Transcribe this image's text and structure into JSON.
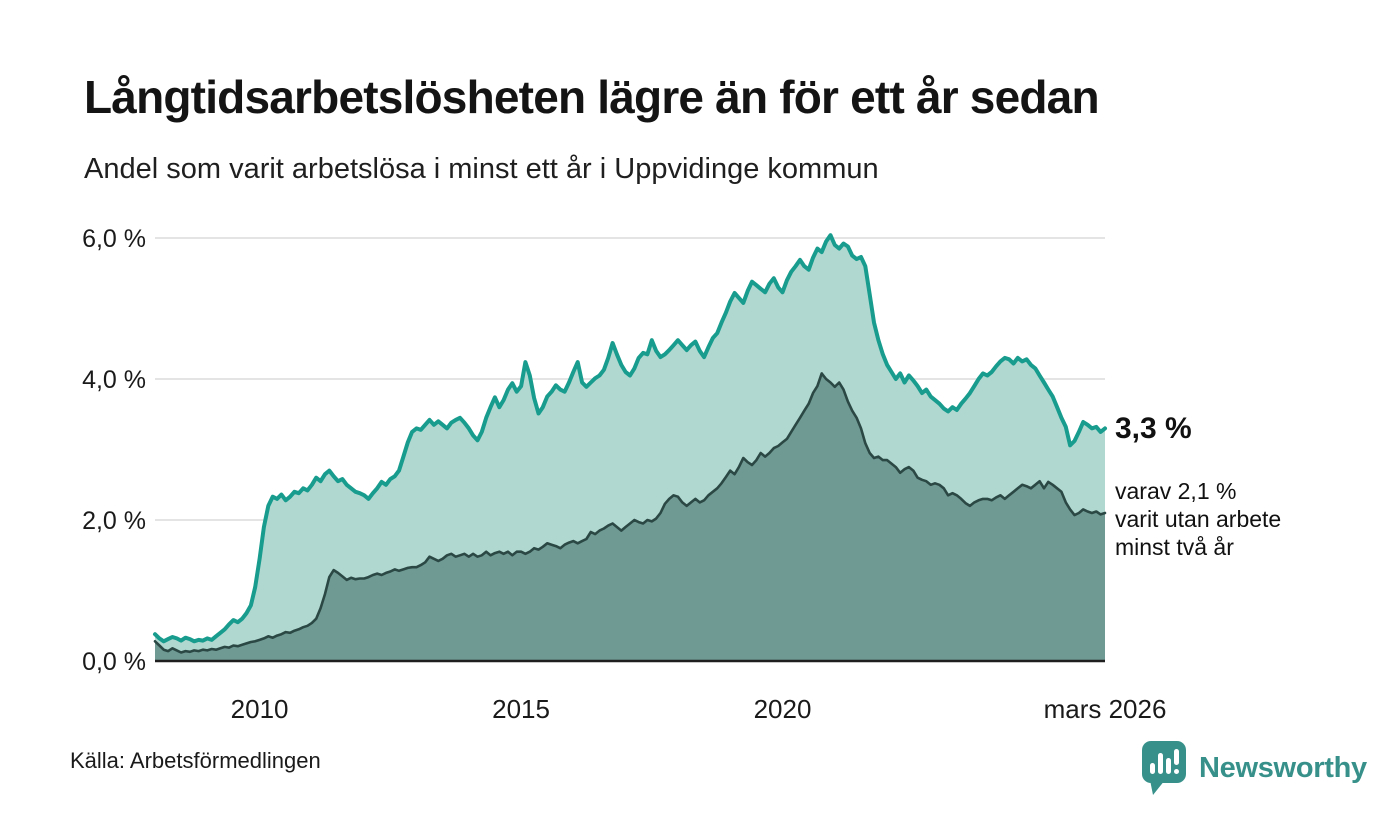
{
  "header": {
    "title": "Långtidsarbetslösheten lägre än för ett år sedan",
    "subtitle": "Andel som varit arbetslösa i minst ett år i Uppvidinge kommun"
  },
  "annotations": {
    "latest_value": "3,3 %",
    "secondary": "varav 2,1 %\nvarit utan arbete\nminst två år"
  },
  "footer": {
    "source": "Källa: Arbetsförmedlingen",
    "brand": "Newsworthy"
  },
  "colors": {
    "line_1yr": "#189c8d",
    "fill_1yr": "#b0d8d1",
    "line_2yr": "#2b4845",
    "fill_2yr": "#6f9a93",
    "gridline": "#dcdcdc",
    "axis": "#1f1f1f",
    "brand_teal": "#37918a"
  },
  "chart_data": {
    "type": "area",
    "title": "Långtidsarbetslösheten lägre än för ett år sedan",
    "subtitle": "Andel som varit arbetslösa i minst ett år i Uppvidinge kommun",
    "x_unit": "monthly, 2008-01 to 2026-03 (fractional years)",
    "x_start": 2008.0,
    "x_end": 2026.1667,
    "ylim": [
      0,
      6.3
    ],
    "grid": "horizontal only",
    "legend_position": "none (labelled by right-side annotations)",
    "yticks": [
      {
        "value": 0,
        "label": "0,0 %"
      },
      {
        "value": 2,
        "label": "2,0 %"
      },
      {
        "value": 4,
        "label": "4,0 %"
      },
      {
        "value": 6,
        "label": "6,0 %"
      }
    ],
    "xticks": [
      {
        "value": 2010,
        "label": "2010"
      },
      {
        "value": 2015,
        "label": "2015"
      },
      {
        "value": 2020,
        "label": "2020"
      },
      {
        "value": 2026.1667,
        "label": "mars 2026"
      }
    ],
    "series": [
      {
        "name": "Andel arbetslösa minst ett år",
        "latest_label": "3,3 %",
        "values": [
          0.38,
          0.32,
          0.28,
          0.31,
          0.34,
          0.32,
          0.29,
          0.33,
          0.31,
          0.28,
          0.3,
          0.29,
          0.32,
          0.3,
          0.35,
          0.4,
          0.45,
          0.52,
          0.58,
          0.55,
          0.6,
          0.68,
          0.79,
          1.05,
          1.45,
          1.9,
          2.2,
          2.33,
          2.3,
          2.36,
          2.28,
          2.33,
          2.4,
          2.38,
          2.45,
          2.42,
          2.5,
          2.6,
          2.55,
          2.65,
          2.7,
          2.62,
          2.55,
          2.58,
          2.5,
          2.45,
          2.4,
          2.38,
          2.35,
          2.3,
          2.38,
          2.45,
          2.54,
          2.5,
          2.58,
          2.62,
          2.7,
          2.9,
          3.1,
          3.25,
          3.3,
          3.28,
          3.35,
          3.42,
          3.35,
          3.4,
          3.35,
          3.3,
          3.38,
          3.42,
          3.45,
          3.38,
          3.3,
          3.2,
          3.13,
          3.25,
          3.45,
          3.6,
          3.74,
          3.6,
          3.7,
          3.85,
          3.94,
          3.82,
          3.9,
          4.24,
          4.05,
          3.73,
          3.51,
          3.6,
          3.75,
          3.82,
          3.91,
          3.85,
          3.82,
          3.95,
          4.1,
          4.24,
          3.95,
          3.89,
          3.95,
          4.01,
          4.05,
          4.13,
          4.3,
          4.51,
          4.35,
          4.2,
          4.1,
          4.05,
          4.15,
          4.3,
          4.37,
          4.35,
          4.55,
          4.4,
          4.31,
          4.35,
          4.41,
          4.48,
          4.55,
          4.48,
          4.41,
          4.48,
          4.53,
          4.4,
          4.31,
          4.45,
          4.58,
          4.65,
          4.8,
          4.94,
          5.1,
          5.22,
          5.15,
          5.08,
          5.25,
          5.38,
          5.33,
          5.28,
          5.23,
          5.35,
          5.43,
          5.3,
          5.23,
          5.4,
          5.52,
          5.6,
          5.69,
          5.6,
          5.55,
          5.72,
          5.85,
          5.8,
          5.95,
          6.04,
          5.9,
          5.85,
          5.92,
          5.88,
          5.75,
          5.7,
          5.73,
          5.6,
          5.2,
          4.8,
          4.55,
          4.35,
          4.2,
          4.1,
          4.0,
          4.08,
          3.95,
          4.05,
          3.98,
          3.9,
          3.8,
          3.85,
          3.75,
          3.7,
          3.65,
          3.58,
          3.54,
          3.6,
          3.56,
          3.65,
          3.72,
          3.8,
          3.9,
          4.0,
          4.08,
          4.05,
          4.1,
          4.18,
          4.25,
          4.3,
          4.28,
          4.22,
          4.3,
          4.25,
          4.28,
          4.2,
          4.15,
          4.05,
          3.95,
          3.85,
          3.75,
          3.6,
          3.45,
          3.32,
          3.06,
          3.12,
          3.25,
          3.39,
          3.35,
          3.3,
          3.32,
          3.25,
          3.3
        ]
      },
      {
        "name": "Andel arbetslösa minst två år",
        "latest_label": "2,1 %",
        "values": [
          0.28,
          0.22,
          0.16,
          0.14,
          0.18,
          0.15,
          0.12,
          0.14,
          0.13,
          0.15,
          0.14,
          0.16,
          0.15,
          0.17,
          0.16,
          0.18,
          0.2,
          0.19,
          0.22,
          0.21,
          0.23,
          0.25,
          0.27,
          0.28,
          0.3,
          0.32,
          0.35,
          0.33,
          0.36,
          0.38,
          0.41,
          0.4,
          0.43,
          0.45,
          0.48,
          0.5,
          0.54,
          0.6,
          0.75,
          0.95,
          1.19,
          1.29,
          1.25,
          1.2,
          1.15,
          1.18,
          1.16,
          1.17,
          1.17,
          1.19,
          1.22,
          1.24,
          1.22,
          1.25,
          1.27,
          1.3,
          1.28,
          1.3,
          1.32,
          1.33,
          1.33,
          1.36,
          1.4,
          1.48,
          1.45,
          1.42,
          1.45,
          1.5,
          1.52,
          1.48,
          1.5,
          1.52,
          1.48,
          1.52,
          1.48,
          1.5,
          1.55,
          1.5,
          1.53,
          1.55,
          1.52,
          1.55,
          1.5,
          1.55,
          1.55,
          1.52,
          1.55,
          1.6,
          1.58,
          1.62,
          1.67,
          1.65,
          1.63,
          1.6,
          1.65,
          1.68,
          1.7,
          1.67,
          1.7,
          1.73,
          1.83,
          1.8,
          1.85,
          1.88,
          1.92,
          1.95,
          1.9,
          1.85,
          1.9,
          1.95,
          2.0,
          1.97,
          1.95,
          2.0,
          1.98,
          2.02,
          2.1,
          2.23,
          2.3,
          2.35,
          2.33,
          2.25,
          2.2,
          2.25,
          2.3,
          2.25,
          2.28,
          2.35,
          2.4,
          2.45,
          2.52,
          2.61,
          2.7,
          2.65,
          2.75,
          2.88,
          2.82,
          2.78,
          2.85,
          2.95,
          2.9,
          2.95,
          3.02,
          3.05,
          3.1,
          3.15,
          3.25,
          3.35,
          3.45,
          3.55,
          3.65,
          3.8,
          3.9,
          4.08,
          4.0,
          3.95,
          3.89,
          3.95,
          3.85,
          3.68,
          3.55,
          3.45,
          3.3,
          3.09,
          2.95,
          2.88,
          2.9,
          2.85,
          2.85,
          2.8,
          2.75,
          2.67,
          2.72,
          2.75,
          2.7,
          2.6,
          2.57,
          2.55,
          2.5,
          2.52,
          2.5,
          2.45,
          2.35,
          2.38,
          2.35,
          2.3,
          2.24,
          2.2,
          2.25,
          2.28,
          2.3,
          2.3,
          2.28,
          2.32,
          2.35,
          2.3,
          2.35,
          2.4,
          2.45,
          2.5,
          2.48,
          2.45,
          2.5,
          2.55,
          2.45,
          2.54,
          2.5,
          2.45,
          2.4,
          2.25,
          2.15,
          2.07,
          2.1,
          2.15,
          2.12,
          2.1,
          2.12,
          2.08,
          2.1
        ]
      }
    ]
  }
}
